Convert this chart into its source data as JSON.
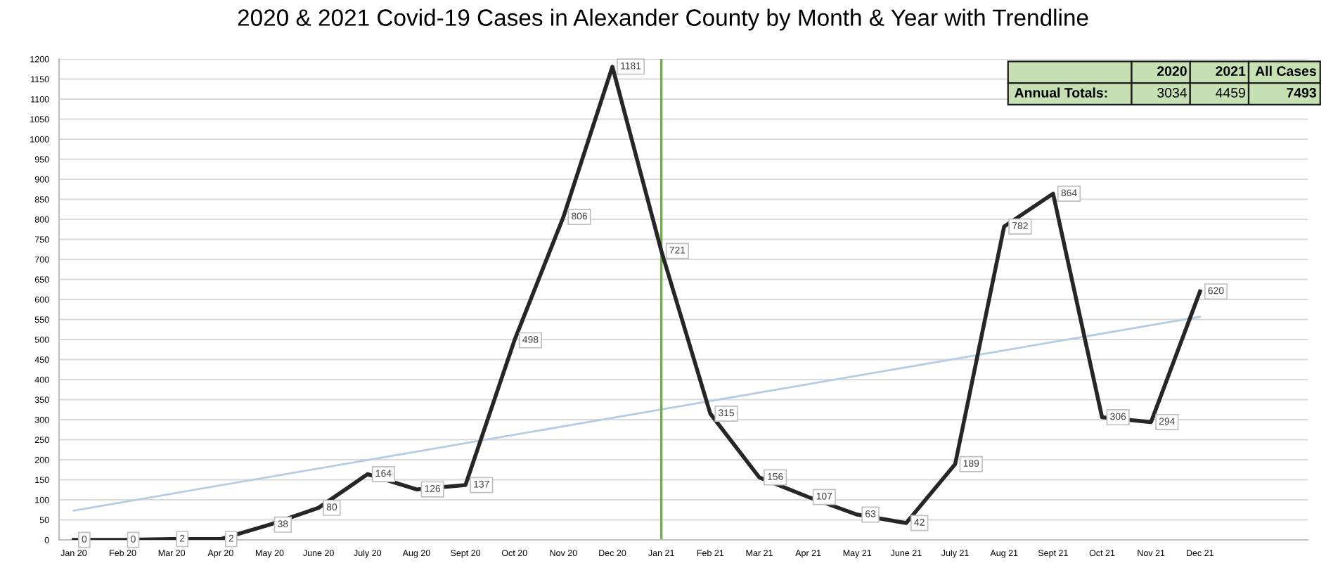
{
  "chart_data": {
    "type": "line",
    "title": "2020 & 2021 Covid-19 Cases in Alexander County by Month & Year with Trendline",
    "categories": [
      "Jan 20",
      "Feb 20",
      "Mar 20",
      "Apr 20",
      "May 20",
      "June 20",
      "July 20",
      "Aug 20",
      "Sept 20",
      "Oct 20",
      "Nov 20",
      "Dec 20",
      "Jan 21",
      "Feb 21",
      "Mar 21",
      "Apr 21",
      "May 21",
      "June 21",
      "July 21",
      "Aug 21",
      "Sept 21",
      "Oct 21",
      "Nov 21",
      "Dec 21"
    ],
    "series": [
      {
        "color": "#262626",
        "values": [
          0,
          0,
          2,
          2,
          38,
          80,
          164,
          126,
          137,
          498,
          806,
          1181,
          721,
          315,
          156,
          107,
          63,
          42,
          189,
          782,
          864,
          306,
          294,
          620
        ],
        "value_labels": [
          "0",
          "0",
          "2",
          "2",
          "38",
          "80",
          "164",
          "126",
          "137",
          "498",
          "806",
          "1181",
          "721",
          "315",
          "156",
          "107",
          "63",
          "42",
          "189",
          "782",
          "864",
          "306",
          "294",
          "620"
        ]
      },
      {
        "type": "line",
        "color": "#b4cde6",
        "x": [
          "Jan 20",
          "Dec 21"
        ],
        "values": [
          73,
          557
        ]
      }
    ],
    "ylim": [
      0,
      1200
    ],
    "yticks": [
      0,
      50,
      100,
      150,
      200,
      250,
      300,
      350,
      400,
      450,
      500,
      550,
      600,
      650,
      700,
      750,
      800,
      850,
      900,
      950,
      1000,
      1050,
      1100,
      1150,
      1200
    ],
    "grid": "y",
    "marker": "none",
    "line_style": "solid",
    "ref_lines": [
      {
        "axis": "x",
        "value": "Jan 21",
        "label": null,
        "color": "#70ad47"
      }
    ],
    "annotations": [
      "2020",
      "2021",
      "All Cases",
      "Annual Totals:",
      "3034",
      "4459",
      "7493"
    ]
  }
}
